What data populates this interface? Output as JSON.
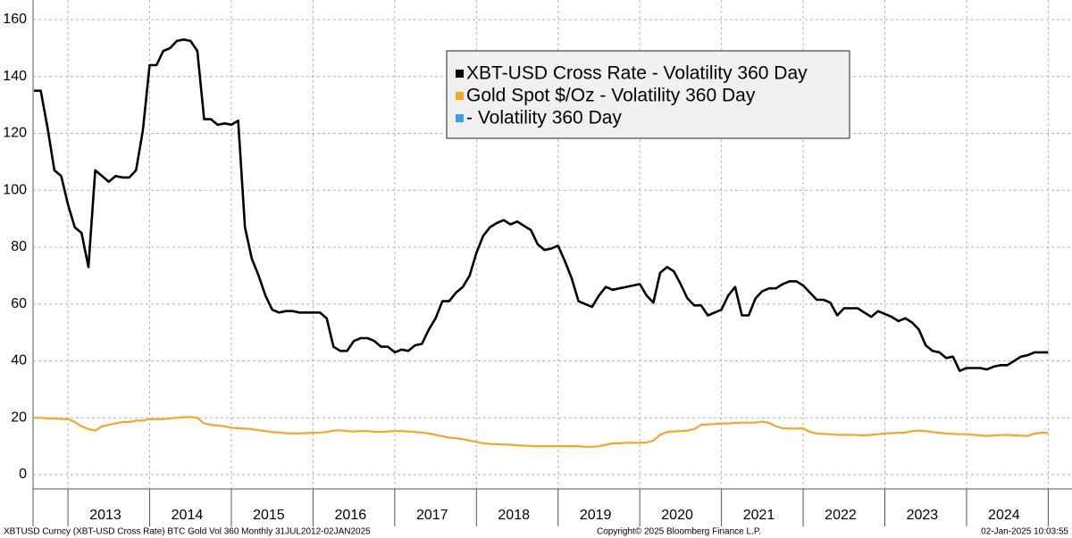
{
  "chart_data": {
    "type": "line",
    "categories": [
      null,
      null,
      null,
      null,
      null,
      null,
      null,
      null,
      null,
      null,
      null,
      "2013",
      null,
      null,
      null,
      null,
      null,
      null,
      null,
      null,
      null,
      null,
      null,
      "2014",
      null,
      null,
      null,
      null,
      null,
      null,
      null,
      null,
      null,
      null,
      null,
      "2015",
      null,
      null,
      null,
      null,
      null,
      null,
      null,
      null,
      null,
      null,
      null,
      "2016",
      null,
      null,
      null,
      null,
      null,
      null,
      null,
      null,
      null,
      null,
      null,
      "2017",
      null,
      null,
      null,
      null,
      null,
      null,
      null,
      null,
      null,
      null,
      null,
      "2018",
      null,
      null,
      null,
      null,
      null,
      null,
      null,
      null,
      null,
      null,
      null,
      "2019",
      null,
      null,
      null,
      null,
      null,
      null,
      null,
      null,
      null,
      null,
      null,
      "2020",
      null,
      null,
      null,
      null,
      null,
      null,
      null,
      null,
      null,
      null,
      null,
      "2021",
      null,
      null,
      null,
      null,
      null,
      null,
      null,
      null,
      null,
      null,
      null,
      "2022",
      null,
      null,
      null,
      null,
      null,
      null,
      null,
      null,
      null,
      null,
      null,
      "2023",
      null,
      null,
      null,
      null,
      null,
      null,
      null,
      null,
      null,
      null,
      null,
      "2024",
      null,
      null,
      null,
      null,
      null,
      null
    ],
    "series": [
      {
        "name": "XBT-USD Cross Rate - Volatility 360 Day",
        "color": "#000000",
        "values": [
          135,
          135,
          122,
          107,
          105,
          95,
          87,
          85,
          73,
          107,
          105,
          103,
          105,
          104.5,
          104.5,
          107,
          121,
          144,
          144,
          149,
          150,
          152.5,
          153,
          152.5,
          149,
          125,
          125,
          123,
          123.5,
          123,
          124.5,
          87,
          76,
          70,
          63,
          58,
          57,
          57.5,
          57.5,
          57,
          57,
          57,
          57,
          55,
          45,
          43.5,
          43.5,
          47,
          48,
          48,
          47,
          45,
          45,
          43,
          44,
          43.5,
          45.5,
          46,
          51,
          55,
          61,
          61,
          64,
          66,
          70,
          78,
          84,
          87,
          88.5,
          89.5,
          88,
          89,
          87.5,
          86,
          81,
          79,
          79.5,
          80.5,
          75,
          69,
          61,
          60,
          59,
          63,
          66,
          65,
          65.5,
          66,
          66.5,
          67,
          63,
          60.5,
          71,
          73,
          71.5,
          67,
          62,
          59.5,
          59.5,
          56,
          57,
          58,
          63,
          66,
          56,
          56,
          62,
          64.5,
          65.5,
          65.5,
          67,
          68,
          68,
          66.5,
          64,
          61.5,
          61.5,
          60.5,
          56,
          58.5,
          58.5,
          58.5,
          57,
          55.5,
          57.5,
          56.5,
          55.5,
          54,
          55,
          53.5,
          51,
          45.5,
          43.5,
          43,
          41,
          41.5,
          36.5,
          37.5,
          37.5,
          37.5,
          37,
          38,
          38.5,
          38.5,
          40,
          41.5,
          42,
          43,
          43,
          43
        ]
      },
      {
        "name": "Gold Spot $/Oz - Volatility 360 Day",
        "color": "#f5a623",
        "values": [
          20,
          20,
          19.8,
          19.7,
          19.6,
          19.5,
          18.5,
          17,
          16,
          15.5,
          17,
          17.5,
          18,
          18.5,
          18.5,
          19,
          19,
          19.5,
          19.5,
          19.5,
          19.8,
          20,
          20.2,
          20.3,
          20,
          18,
          17.5,
          17.3,
          17,
          16.5,
          16.3,
          16.2,
          16,
          15.6,
          15.3,
          15,
          14.8,
          14.6,
          14.5,
          14.5,
          14.6,
          14.7,
          14.8,
          15,
          15.5,
          15.6,
          15.3,
          15.2,
          15.3,
          15.3,
          15.1,
          15,
          15.2,
          15.3,
          15.3,
          15.2,
          15,
          14.8,
          14.5,
          14,
          13.5,
          13,
          12.8,
          12.5,
          12,
          11.5,
          11,
          10.8,
          10.7,
          10.6,
          10.5,
          10.3,
          10.2,
          10.1,
          10,
          10,
          10,
          10,
          10,
          10,
          10,
          9.8,
          9.8,
          10,
          10.5,
          11,
          11,
          11.2,
          11.2,
          11.2,
          11.3,
          12,
          14,
          15,
          15.2,
          15.3,
          15.5,
          16,
          17.5,
          17.7,
          17.8,
          18,
          18,
          18.2,
          18.3,
          18.3,
          18.3,
          18.7,
          18.2,
          17,
          16.3,
          16.2,
          16.2,
          16.3,
          15,
          14.5,
          14.3,
          14.2,
          14,
          14,
          14,
          13.9,
          13.8,
          14,
          14.2,
          14.5,
          14.6,
          14.7,
          14.8,
          15.3,
          15.5,
          15.3,
          15,
          14.7,
          14.5,
          14.3,
          14.2,
          14.2,
          14,
          13.8,
          13.6,
          13.8,
          13.9,
          14,
          13.8,
          13.7,
          13.6,
          14.5,
          14.7,
          14.7
        ]
      },
      {
        "name": "- Volatility 360 Day",
        "color": "#3a9ee8",
        "values": [
          null,
          null,
          null,
          null,
          null,
          null,
          null,
          null,
          null,
          null,
          null,
          null,
          null,
          null,
          null,
          null,
          null,
          null,
          null,
          null,
          null,
          null,
          null,
          null,
          null,
          null,
          null,
          null,
          null,
          null,
          null,
          null,
          null,
          null,
          null,
          null,
          null,
          null,
          null,
          null,
          null,
          null,
          null,
          null,
          null,
          null,
          null,
          null,
          null,
          null,
          null,
          null,
          null,
          null,
          null,
          null,
          null,
          null,
          null,
          null,
          null,
          null,
          null,
          null,
          null,
          null,
          null,
          null,
          null,
          null,
          null,
          null,
          null,
          null,
          null,
          null,
          null,
          null,
          null,
          null,
          null,
          null,
          null,
          null,
          null,
          null,
          null,
          null,
          null,
          null,
          null,
          null,
          null,
          null,
          null,
          null,
          null,
          null,
          null,
          null,
          null,
          null,
          null,
          null,
          null,
          null,
          null,
          null,
          null,
          null,
          null,
          null,
          null,
          null,
          null,
          null,
          null,
          null,
          null,
          null,
          null,
          null,
          null,
          null,
          null,
          null,
          null,
          null,
          null,
          null,
          null,
          null,
          null,
          null,
          null,
          null,
          null,
          null,
          null,
          null,
          null,
          null,
          null,
          null,
          null,
          null,
          null,
          null,
          null,
          null
        ]
      }
    ],
    "ylim": [
      0,
      160
    ],
    "yticks": [
      0,
      20,
      40,
      60,
      80,
      100,
      120,
      140,
      160
    ],
    "grid": true,
    "legend": "top",
    "footer": {
      "left": "XBTUSD Curncy (XBT-USD Cross Rate) BTC Gold Vol 360  Monthly 31JUL2012-02JAN2025",
      "center": "Copyright© 2025 Bloomberg Finance L.P.",
      "right": "02-Jan-2025 10:03:55"
    }
  }
}
